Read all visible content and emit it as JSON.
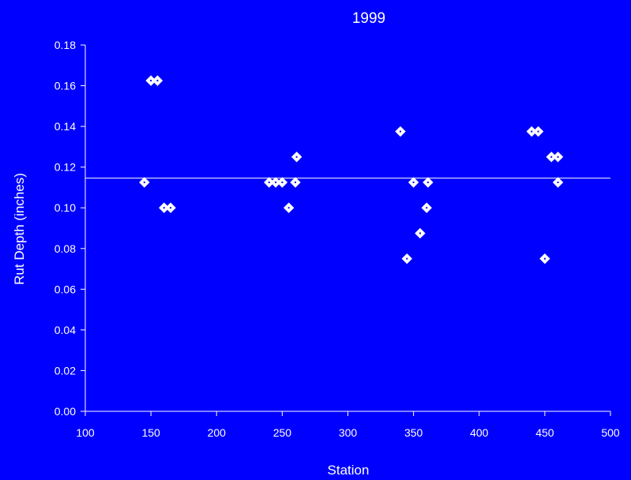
{
  "background_color": "#0000FF",
  "foreground_color": "#FFFFFF",
  "chart_data": {
    "type": "scatter",
    "title": "1999",
    "xlabel": "Station",
    "ylabel": "Rut Depth (inches)",
    "xlim": [
      100,
      500
    ],
    "ylim": [
      0,
      0.18
    ],
    "x_ticks": [
      "100",
      "150",
      "200",
      "250",
      "300",
      "350",
      "400",
      "450",
      "500"
    ],
    "y_ticks": [
      "0.00",
      "0.02",
      "0.04",
      "0.06",
      "0.08",
      "0.10",
      "0.12",
      "0.14",
      "0.16",
      "0.18"
    ],
    "x_tick_values": [
      100,
      150,
      200,
      250,
      300,
      350,
      400,
      450,
      500
    ],
    "y_tick_values": [
      0,
      0.02,
      0.04,
      0.06,
      0.08,
      0.1,
      0.12,
      0.14,
      0.16,
      0.18
    ],
    "grid": false,
    "marker": "diamond",
    "reference_line": {
      "y": 0.1146
    },
    "points": [
      {
        "x": 145,
        "y": 0.1125
      },
      {
        "x": 150,
        "y": 0.1625
      },
      {
        "x": 155,
        "y": 0.1625
      },
      {
        "x": 160,
        "y": 0.1
      },
      {
        "x": 165,
        "y": 0.1
      },
      {
        "x": 240,
        "y": 0.1125
      },
      {
        "x": 245,
        "y": 0.1125
      },
      {
        "x": 250,
        "y": 0.1125
      },
      {
        "x": 255,
        "y": 0.1
      },
      {
        "x": 260,
        "y": 0.1125
      },
      {
        "x": 261,
        "y": 0.125
      },
      {
        "x": 340,
        "y": 0.1375
      },
      {
        "x": 345,
        "y": 0.075
      },
      {
        "x": 350,
        "y": 0.1125
      },
      {
        "x": 355,
        "y": 0.0875
      },
      {
        "x": 360,
        "y": 0.1
      },
      {
        "x": 361,
        "y": 0.1125
      },
      {
        "x": 440,
        "y": 0.1375
      },
      {
        "x": 445,
        "y": 0.1375
      },
      {
        "x": 450,
        "y": 0.075
      },
      {
        "x": 455,
        "y": 0.125
      },
      {
        "x": 460,
        "y": 0.125
      },
      {
        "x": 460,
        "y": 0.1125
      }
    ]
  }
}
